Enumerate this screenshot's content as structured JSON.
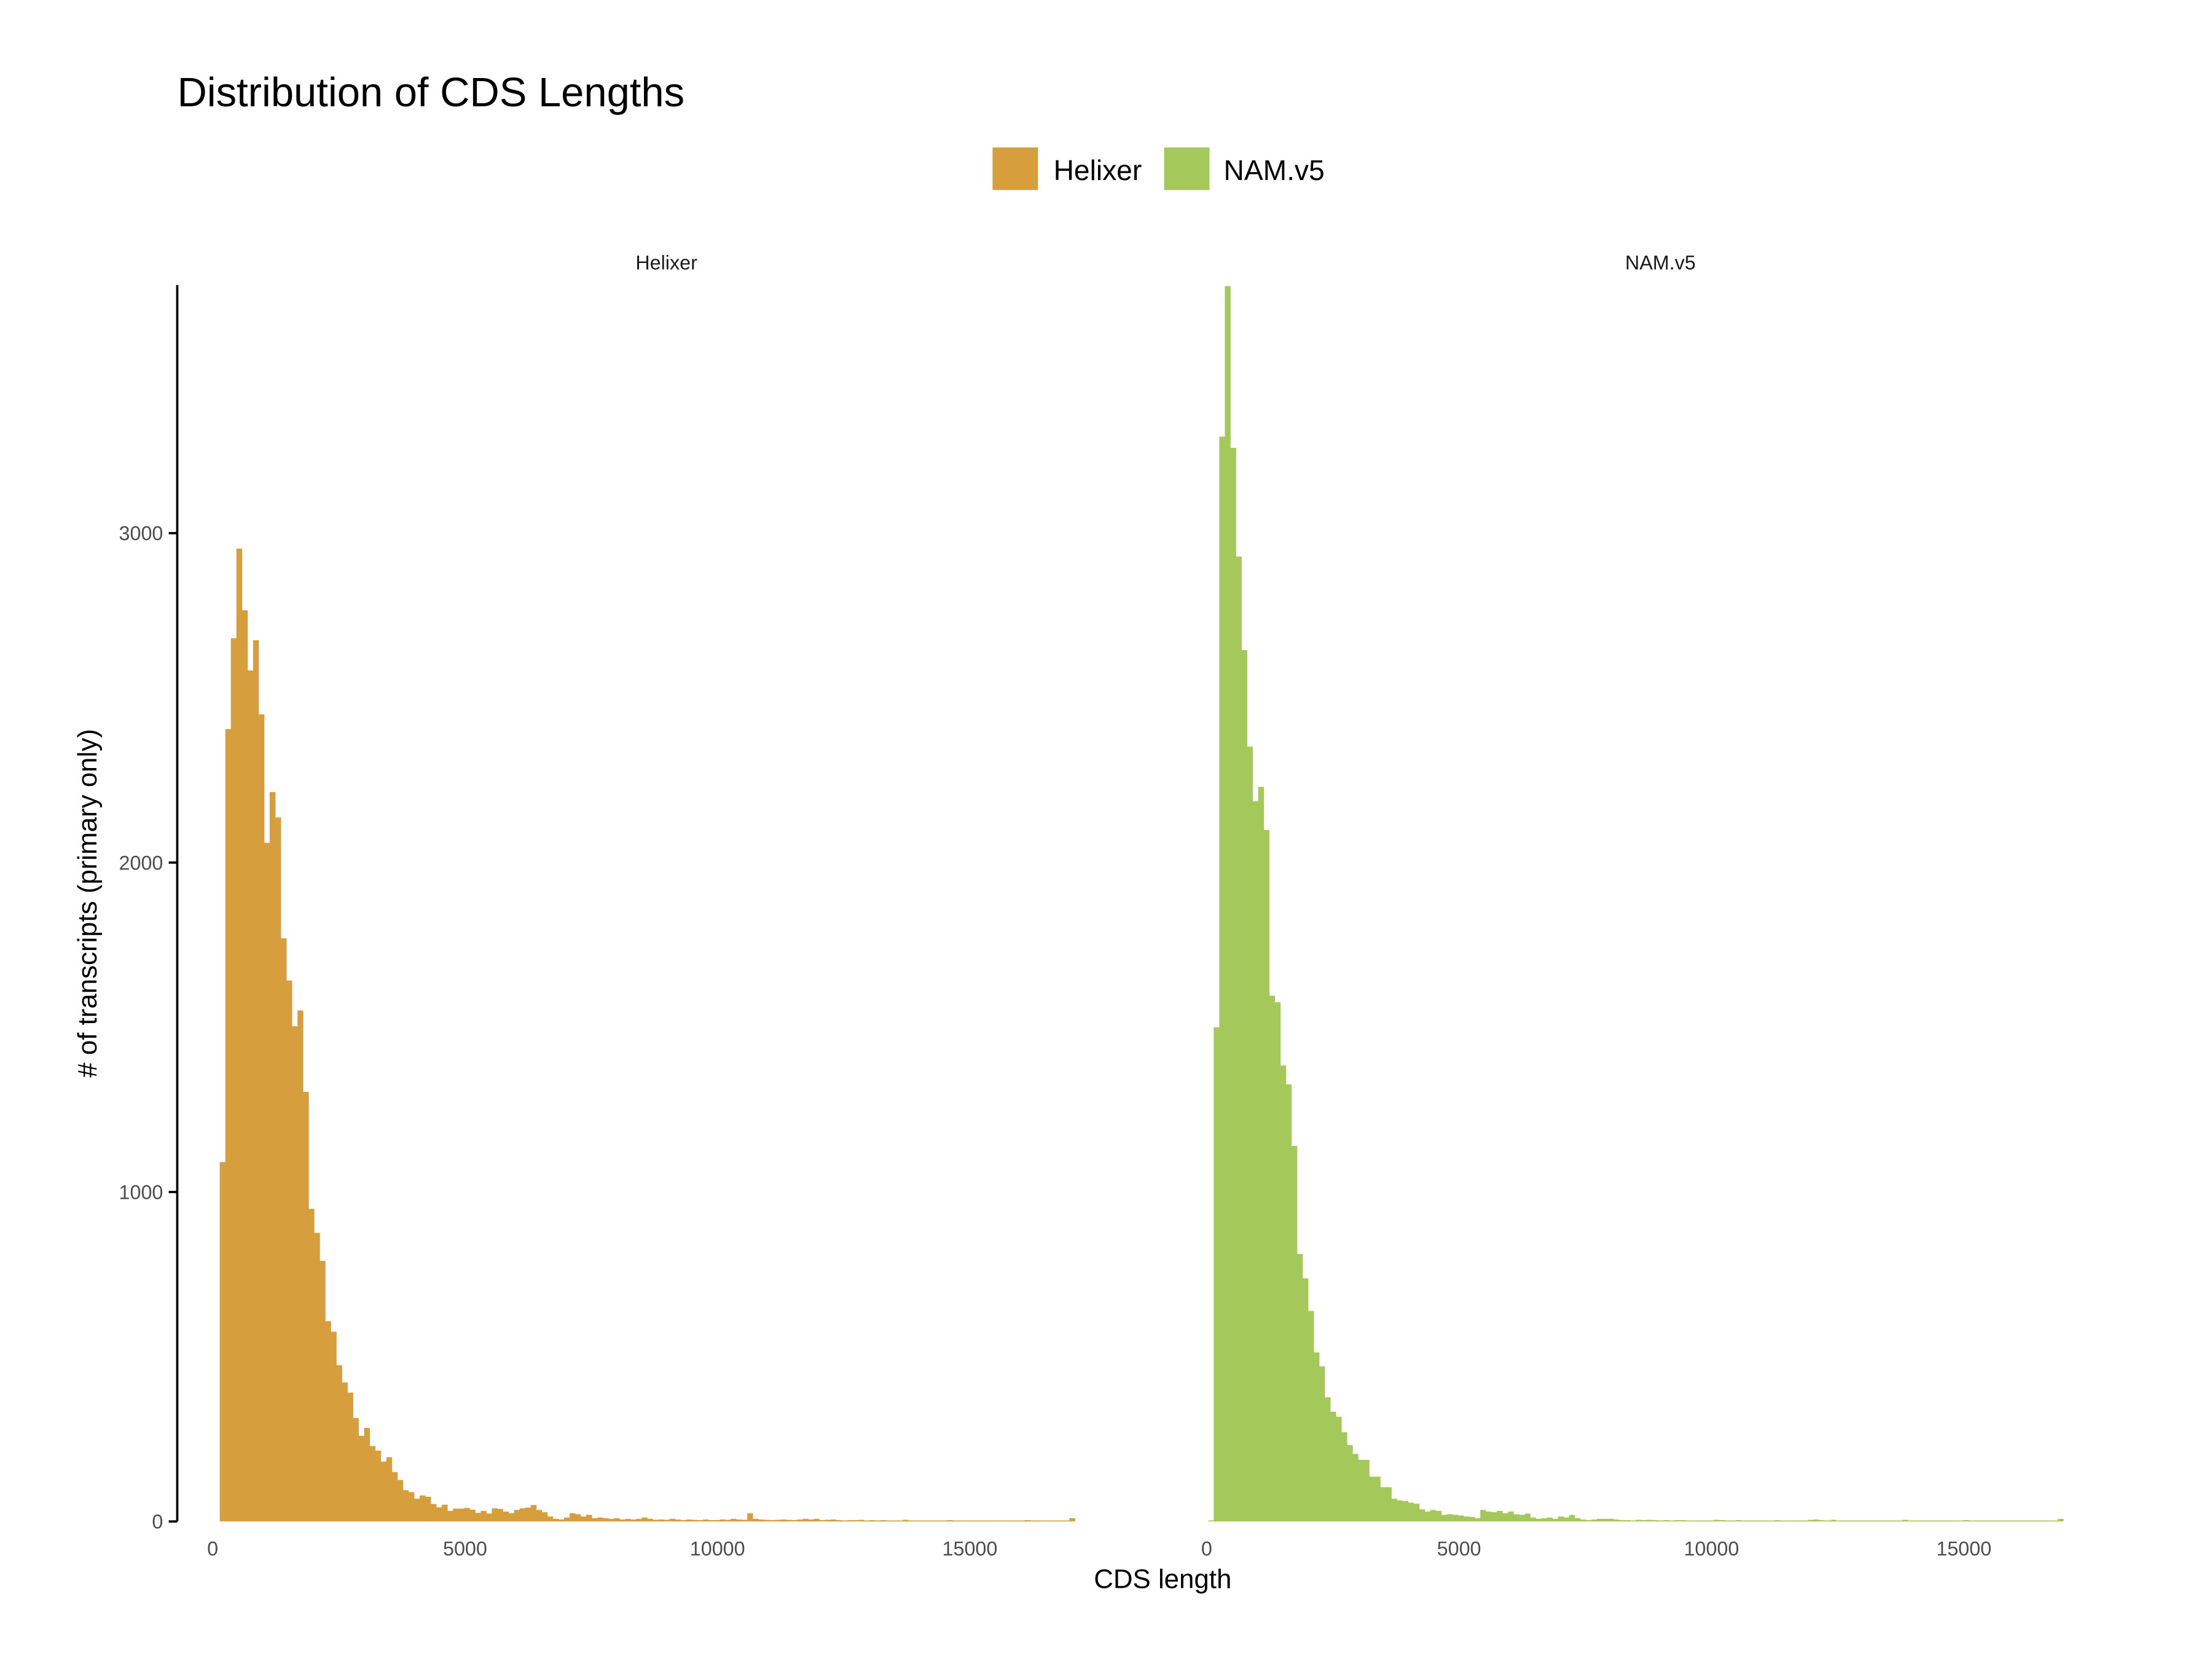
{
  "chart_data": {
    "type": "bar",
    "title": "Distribution of CDS Lengths",
    "xlabel": "CDS length",
    "ylabel": "# of transcripts (primary only)",
    "xlim": [
      0,
      17000
    ],
    "ylim": [
      0,
      3750
    ],
    "x_ticks": [
      "0",
      "5000",
      "10000",
      "15000"
    ],
    "y_ticks": [
      "0",
      "1000",
      "2000",
      "3000"
    ],
    "grid": false,
    "legend_position": "top",
    "bin_start": 30,
    "bin_width": 110,
    "legend": [
      {
        "name": "Helixer",
        "color": "#D69E3C"
      },
      {
        "name": "NAM.v5",
        "color": "#A5C85A"
      }
    ],
    "panels": [
      {
        "strip": "Helixer",
        "color": "#D69E3C",
        "counts": [
          0,
          1091,
          2405,
          2681,
          2953,
          2766,
          2583,
          2675,
          2450,
          2060,
          2214,
          2137,
          1770,
          1642,
          1503,
          1551,
          1304,
          949,
          876,
          791,
          608,
          576,
          474,
          422,
          391,
          314,
          260,
          284,
          229,
          215,
          182,
          195,
          150,
          126,
          95,
          89,
          69,
          79,
          75,
          53,
          43,
          51,
          32,
          39,
          39,
          41,
          36,
          26,
          32,
          24,
          40,
          38,
          30,
          25,
          35,
          40,
          42,
          50,
          35,
          28,
          15,
          8,
          6,
          12,
          25,
          22,
          15,
          20,
          10,
          12,
          10,
          8,
          10,
          6,
          8,
          6,
          8,
          12,
          8,
          5,
          6,
          5,
          8,
          6,
          4,
          6,
          5,
          4,
          6,
          4,
          4,
          6,
          5,
          8,
          6,
          5,
          25,
          8,
          6,
          5,
          4,
          5,
          6,
          5,
          4,
          6,
          8,
          6,
          8,
          4,
          5,
          6,
          4,
          3,
          4,
          4,
          5,
          3,
          4,
          3,
          4,
          3,
          3,
          3,
          5,
          3,
          3,
          3,
          3,
          3,
          3,
          3,
          4,
          3,
          3,
          3,
          3,
          3,
          3,
          3,
          3,
          3,
          3,
          3,
          3,
          3,
          4,
          3,
          3,
          3,
          3,
          3,
          3,
          3,
          10
        ]
      },
      {
        "strip": "NAM.v5",
        "color": "#A5C85A",
        "counts": [
          3,
          1500,
          3293,
          3753,
          3259,
          2929,
          2645,
          2352,
          2186,
          2230,
          2099,
          1596,
          1576,
          1384,
          1327,
          1140,
          812,
          738,
          639,
          513,
          471,
          377,
          333,
          318,
          271,
          232,
          205,
          187,
          187,
          136,
          136,
          104,
          104,
          69,
          64,
          62,
          57,
          54,
          37,
          30,
          35,
          32,
          20,
          22,
          20,
          18,
          15,
          14,
          10,
          35,
          30,
          28,
          32,
          25,
          30,
          22,
          20,
          24,
          12,
          8,
          10,
          12,
          8,
          15,
          12,
          20,
          10,
          6,
          4,
          6,
          8,
          8,
          8,
          6,
          4,
          4,
          3,
          5,
          4,
          5,
          4,
          3,
          4,
          3,
          4,
          4,
          3,
          3,
          3,
          3,
          3,
          5,
          4,
          3,
          3,
          4,
          3,
          3,
          3,
          3,
          3,
          3,
          4,
          3,
          3,
          3,
          3,
          3,
          5,
          6,
          4,
          3,
          5,
          3,
          3,
          3,
          3,
          3,
          3,
          3,
          3,
          3,
          3,
          3,
          3,
          5,
          3,
          3,
          3,
          3,
          3,
          3,
          3,
          3,
          3,
          3,
          4,
          3,
          3,
          3,
          3,
          3,
          3,
          3,
          3,
          3,
          3,
          3,
          3,
          3,
          3,
          3,
          3,
          8
        ]
      }
    ]
  }
}
